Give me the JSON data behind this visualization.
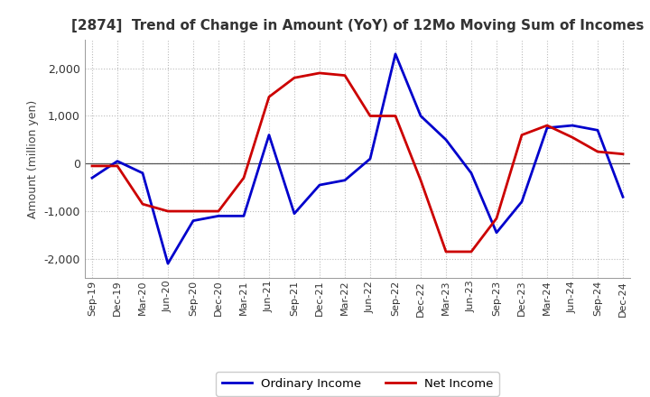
{
  "title": "[2874]  Trend of Change in Amount (YoY) of 12Mo Moving Sum of Incomes",
  "ylabel": "Amount (million yen)",
  "ylim": [
    -2400,
    2600
  ],
  "yticks": [
    -2000,
    -1000,
    0,
    1000,
    2000
  ],
  "x_labels": [
    "Sep-19",
    "Dec-19",
    "Mar-20",
    "Jun-20",
    "Sep-20",
    "Dec-20",
    "Mar-21",
    "Jun-21",
    "Sep-21",
    "Dec-21",
    "Mar-22",
    "Jun-22",
    "Sep-22",
    "Dec-22",
    "Mar-23",
    "Jun-23",
    "Sep-23",
    "Dec-23",
    "Mar-24",
    "Jun-24",
    "Sep-24",
    "Dec-24"
  ],
  "ordinary_income": [
    -300,
    50,
    -200,
    -2100,
    -1200,
    -1100,
    -1100,
    600,
    -1050,
    -450,
    -350,
    100,
    2300,
    1000,
    500,
    -200,
    -1450,
    -800,
    750,
    800,
    700,
    -700
  ],
  "net_income": [
    -50,
    -50,
    -850,
    -1000,
    -1000,
    -1000,
    -300,
    1400,
    1800,
    1900,
    1850,
    1000,
    1000,
    -350,
    -1850,
    -1850,
    -1150,
    600,
    800,
    550,
    250,
    200
  ],
  "ordinary_color": "#0000cc",
  "net_color": "#cc0000",
  "bg_color": "#ffffff",
  "grid_color": "#bbbbbb",
  "title_color": "#333333",
  "zero_line_color": "#555555",
  "legend_labels": [
    "Ordinary Income",
    "Net Income"
  ]
}
